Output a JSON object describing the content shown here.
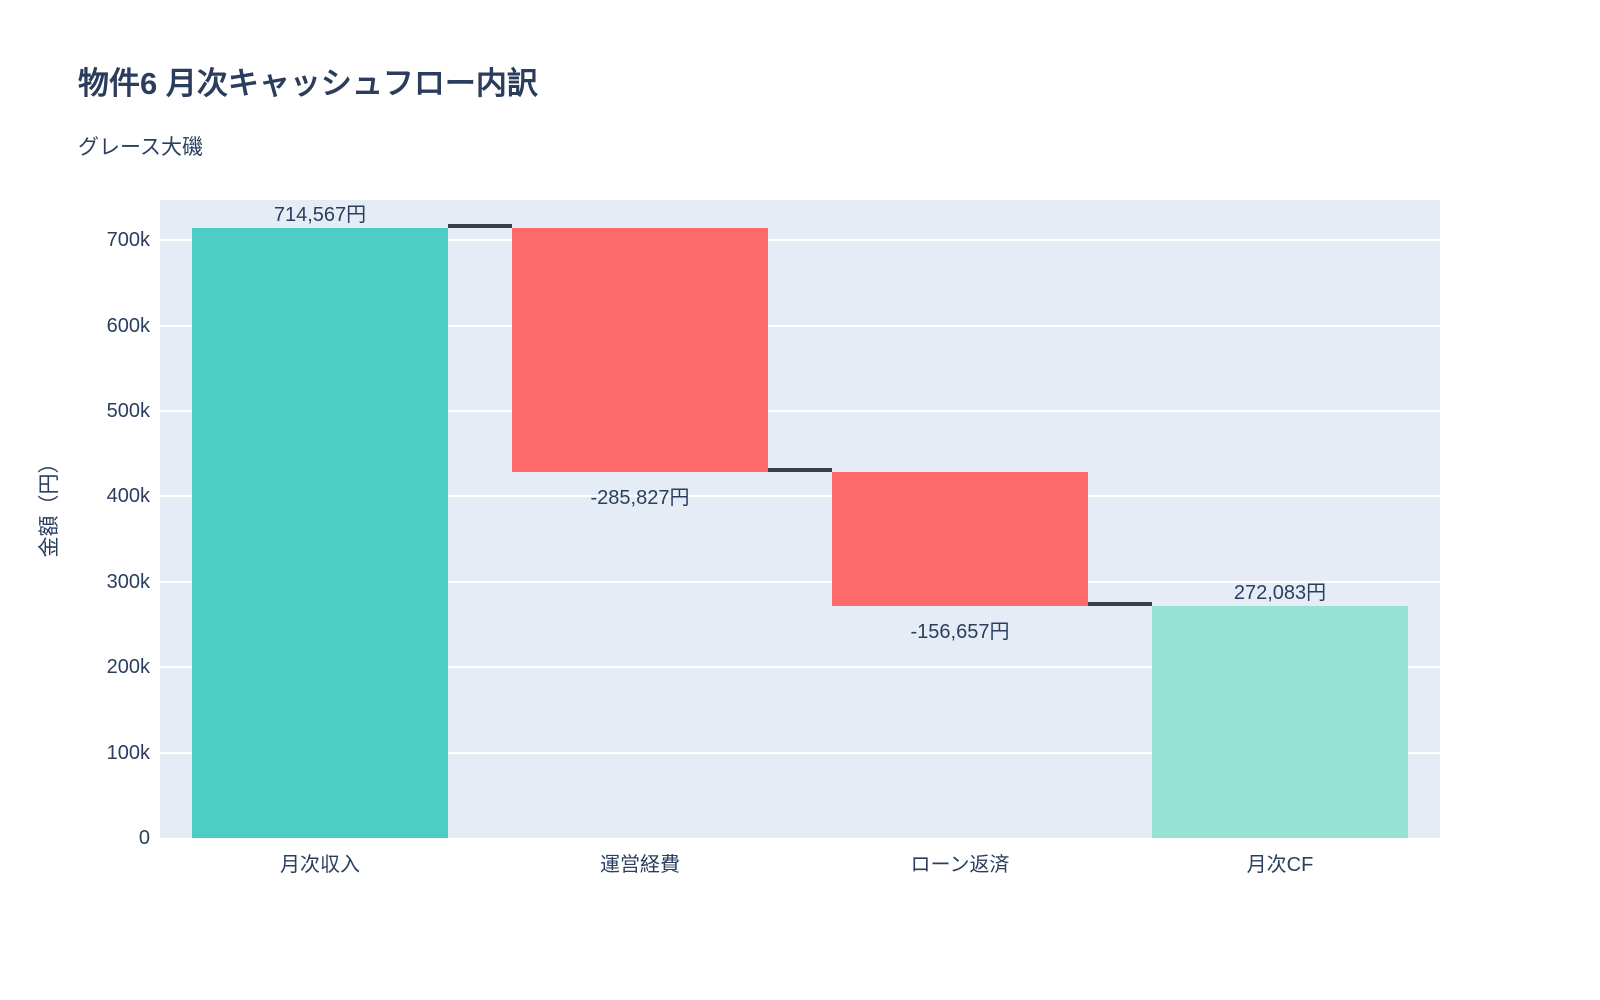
{
  "chart_data": {
    "type": "waterfall",
    "title": "物件6 月次キャッシュフロー内訳",
    "subtitle": "グレース大磯",
    "ylabel": "金額（円）",
    "xlabel": "",
    "categories": [
      "月次収入",
      "運営経費",
      "ローン返済",
      "月次CF"
    ],
    "values": [
      714567,
      -285827,
      -156657,
      272083
    ],
    "measures": [
      "relative",
      "relative",
      "relative",
      "total"
    ],
    "bar_labels": [
      "714,567円",
      "-285,827円",
      "-156,657円",
      "272,083円"
    ],
    "running_totals": [
      714567,
      428740,
      272083,
      272083
    ],
    "ytick_values": [
      0,
      100000,
      200000,
      300000,
      400000,
      500000,
      600000,
      700000
    ],
    "ytick_labels": [
      "0",
      "100k",
      "200k",
      "300k",
      "400k",
      "500k",
      "600k",
      "700k"
    ],
    "ylim": [
      0,
      747000
    ],
    "grid": "horizontal-only",
    "legend": "none",
    "colors": {
      "increasing": "#4ECDC4",
      "decreasing": "#FF6B6B",
      "total": "#96E2D3",
      "connector": "#3b3e42",
      "plot_background": "#e5ecf6",
      "gridline": "#ffffff",
      "text": "#2a3f5f"
    }
  }
}
